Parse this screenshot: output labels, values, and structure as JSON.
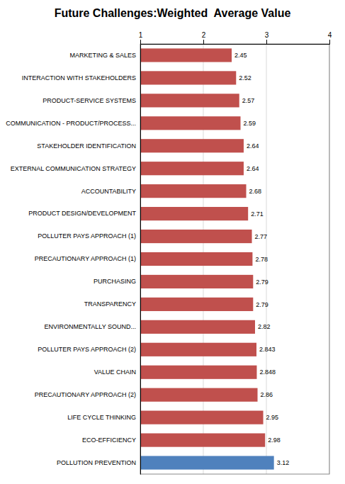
{
  "chart_data": {
    "type": "bar",
    "orientation": "horizontal",
    "title": "Future Challenges:Weighted  Average Value",
    "categories": [
      "MARKETING & SALES",
      "INTERACTION WITH STAKEHOLDERS",
      "PRODUCT-SERVICE SYSTEMS",
      "COMMUNICATION - PRODUCT/PROCESS...",
      "STAKEHOLDER IDENTIFICATION",
      "EXTERNAL COMMUNICATION STRATEGY",
      "ACCOUNTABILITY",
      "PRODUCT DESIGN/DEVELOPMENT",
      "POLLUTER PAYS APPROACH (1)",
      "PRECAUTIONARY APPROACH (1)",
      "PURCHASING",
      "TRANSPARENCY",
      "ENVIRONMENTALLY SOUND...",
      "POLLUTER PAYS APPROACH (2)",
      "VALUE CHAIN",
      "PRECAUTIONARY APPROACH (2)",
      "LIFE CYCLE THINKING",
      "ECO-EFFICIENCY",
      "POLLUTION PREVENTION"
    ],
    "values": [
      2.45,
      2.52,
      2.57,
      2.59,
      2.64,
      2.64,
      2.68,
      2.71,
      2.77,
      2.78,
      2.79,
      2.79,
      2.82,
      2.843,
      2.848,
      2.86,
      2.95,
      2.98,
      3.12
    ],
    "colors": [
      "#c0504d",
      "#c0504d",
      "#c0504d",
      "#c0504d",
      "#c0504d",
      "#c0504d",
      "#c0504d",
      "#c0504d",
      "#c0504d",
      "#c0504d",
      "#c0504d",
      "#c0504d",
      "#c0504d",
      "#c0504d",
      "#c0504d",
      "#c0504d",
      "#c0504d",
      "#c0504d",
      "#4f81bd"
    ],
    "xlim": [
      1,
      4
    ],
    "xticks": [
      1,
      2,
      3,
      4
    ],
    "grid": true,
    "data_labels": true
  }
}
